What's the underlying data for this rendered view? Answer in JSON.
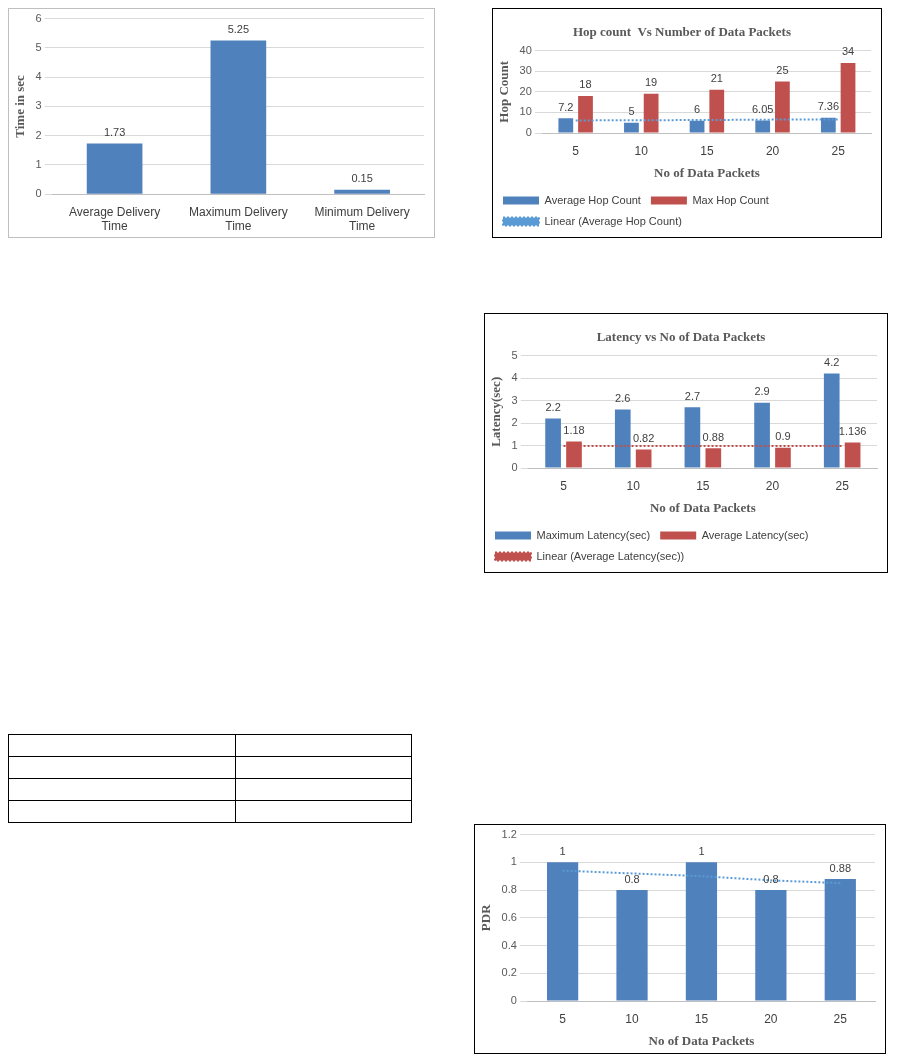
{
  "chart_data": [
    {
      "type": "bar",
      "ylabel": "Time in sec",
      "categories": [
        "Average Delivery Time",
        "Maximum Delivery Time",
        "Minimum Delivery Time"
      ],
      "series": [
        {
          "color": "#4f81bd",
          "values": [
            1.73,
            5.25,
            0.15
          ],
          "value_labels": [
            "1.73",
            "5.25",
            "0.15"
          ]
        }
      ],
      "ylim": [
        0,
        6
      ],
      "yticks": [
        0,
        1,
        2,
        3,
        4,
        5,
        6
      ],
      "grid": "y",
      "legend": false
    },
    {
      "type": "bar",
      "title": "Hop count  Vs Number of Data Packets",
      "xlabel": "No of Data Packets",
      "ylabel": "Hop Count",
      "categories": [
        "5",
        "10",
        "15",
        "20",
        "25"
      ],
      "series": [
        {
          "name": "Average Hop Count",
          "color": "#4f81bd",
          "values": [
            7.2,
            5,
            6,
            6.05,
            7.36
          ],
          "value_labels": [
            "7.2",
            "5",
            "6",
            "6.05",
            "7.36"
          ]
        },
        {
          "name": "Max Hop Count",
          "color": "#c0504d",
          "values": [
            18,
            19,
            21,
            25,
            34
          ],
          "value_labels": [
            "18",
            "19",
            "21",
            "25",
            "34"
          ]
        },
        {
          "name": "Linear (Average Hop Count)",
          "type": "line",
          "color": "#5b9bd5",
          "line_style": "dotted",
          "marker": "none",
          "values": [
            6.1,
            6.2,
            6.3,
            6.5,
            6.6
          ]
        }
      ],
      "ylim": [
        0,
        40
      ],
      "yticks": [
        0,
        10,
        20,
        30,
        40
      ],
      "grid": "y",
      "legend": "bottom"
    },
    {
      "type": "bar",
      "title": "Latency vs No of Data Packets",
      "xlabel": "No of Data Packets",
      "ylabel": "Latency(sec)",
      "categories": [
        "5",
        "10",
        "15",
        "20",
        "25"
      ],
      "series": [
        {
          "name": "Maximum Latency(sec)",
          "color": "#4f81bd",
          "values": [
            2.2,
            2.6,
            2.7,
            2.9,
            4.2
          ],
          "value_labels": [
            "2.2",
            "2.6",
            "2.7",
            "2.9",
            "4.2"
          ]
        },
        {
          "name": "Average Latency(sec)",
          "color": "#c0504d",
          "values": [
            1.18,
            0.82,
            0.88,
            0.9,
            1.136
          ],
          "value_labels": [
            "1.18",
            "0.82",
            "0.88",
            "0.9",
            "1.136"
          ]
        },
        {
          "name": "Linear (Average Latency(sec))",
          "type": "line",
          "color": "#c0504d",
          "line_style": "dotted",
          "marker": "none",
          "values": [
            0.98,
            0.98,
            0.98,
            0.98,
            0.98
          ]
        }
      ],
      "ylim": [
        0,
        5
      ],
      "yticks": [
        0,
        1,
        2,
        3,
        4,
        5
      ],
      "grid": "y",
      "legend": "bottom"
    },
    {
      "type": "bar",
      "xlabel": "No of Data Packets",
      "ylabel": "PDR",
      "categories": [
        "5",
        "10",
        "15",
        "20",
        "25"
      ],
      "series": [
        {
          "color": "#4f81bd",
          "values": [
            1,
            0.8,
            1,
            0.8,
            0.88
          ],
          "value_labels": [
            "1",
            "0.8",
            "1",
            "0.8",
            "0.88"
          ]
        },
        {
          "type": "line",
          "color": "#5b9bd5",
          "line_style": "dotted",
          "marker": "none",
          "values": [
            0.94,
            0.92,
            0.9,
            0.87,
            0.85
          ]
        }
      ],
      "ylim": [
        0,
        1.2
      ],
      "yticks": [
        0,
        0.2,
        0.4,
        0.6,
        0.8,
        1,
        1.2
      ],
      "grid": "y",
      "legend": false
    }
  ]
}
